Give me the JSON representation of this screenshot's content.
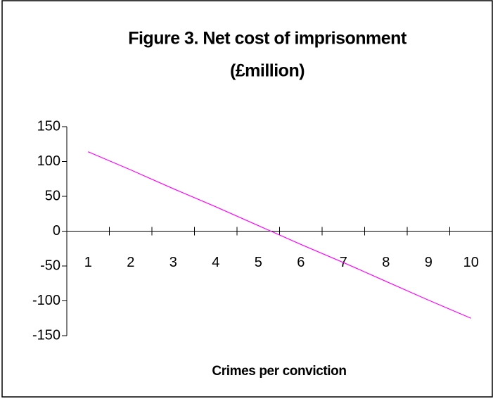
{
  "chart_data": {
    "type": "line",
    "title": [
      "Figure 3. Net cost of imprisonment",
      "(£million)"
    ],
    "x_label": "Crimes per conviction",
    "categories": [
      "1",
      "2",
      "3",
      "4",
      "5",
      "6",
      "7",
      "8",
      "9",
      "10"
    ],
    "series": [
      {
        "name": "Net cost",
        "color": "#ff00ff",
        "values": [
          114,
          88,
          61,
          35,
          8,
          -19,
          -45,
          -72,
          -99,
          -125
        ]
      }
    ],
    "ylim": [
      -150,
      150
    ],
    "yticks": [
      -150,
      -100,
      -50,
      0,
      50,
      100,
      150
    ],
    "grid": false
  }
}
